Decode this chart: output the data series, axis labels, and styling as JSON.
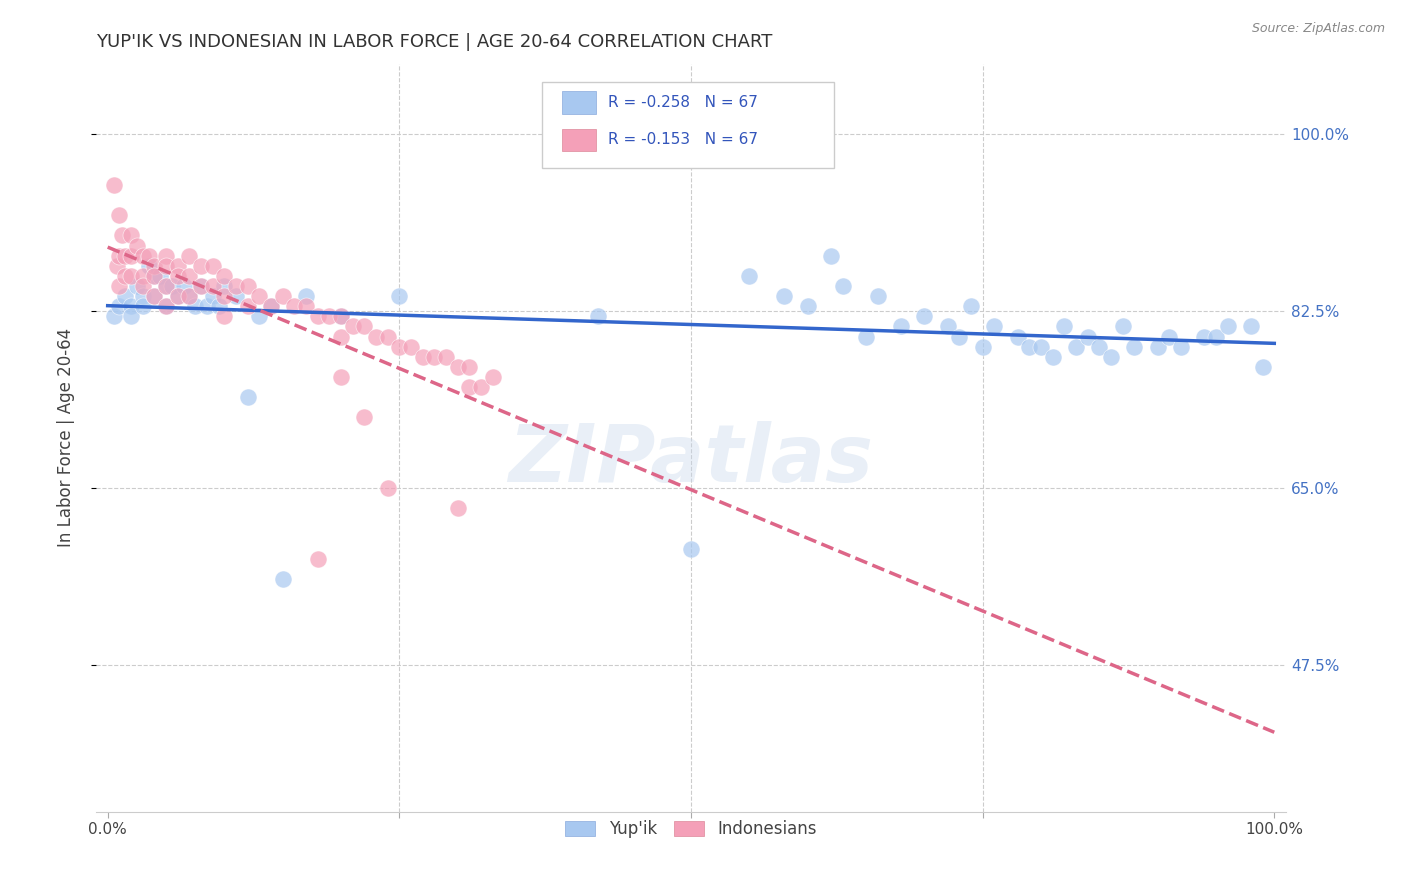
{
  "title": "YUP'IK VS INDONESIAN IN LABOR FORCE | AGE 20-64 CORRELATION CHART",
  "source": "Source: ZipAtlas.com",
  "ylabel": "In Labor Force | Age 20-64",
  "r_yupik": -0.258,
  "n_yupik": 67,
  "r_indonesian": -0.153,
  "n_indonesian": 67,
  "legend_yupik": "Yup'ik",
  "legend_indonesian": "Indonesians",
  "yupik_color": "#A8C8F0",
  "indonesian_color": "#F4A0B8",
  "yupik_line_color": "#3366CC",
  "indonesian_line_color": "#DD6688",
  "background_color": "#FFFFFF",
  "watermark": "ZIPatlas",
  "ytick_vals": [
    0.475,
    0.65,
    0.825,
    1.0
  ],
  "ytick_labels": [
    "47.5%",
    "65.0%",
    "82.5%",
    "100.0%"
  ],
  "yupik_x": [
    0.005,
    0.01,
    0.015,
    0.02,
    0.02,
    0.025,
    0.03,
    0.03,
    0.035,
    0.04,
    0.04,
    0.045,
    0.05,
    0.05,
    0.055,
    0.06,
    0.065,
    0.07,
    0.075,
    0.08,
    0.085,
    0.09,
    0.095,
    0.1,
    0.11,
    0.12,
    0.13,
    0.14,
    0.15,
    0.17,
    0.2,
    0.25,
    0.42,
    0.5,
    0.55,
    0.58,
    0.6,
    0.62,
    0.63,
    0.65,
    0.66,
    0.68,
    0.7,
    0.72,
    0.73,
    0.74,
    0.75,
    0.76,
    0.78,
    0.79,
    0.8,
    0.81,
    0.82,
    0.83,
    0.84,
    0.85,
    0.86,
    0.87,
    0.88,
    0.9,
    0.91,
    0.92,
    0.94,
    0.95,
    0.96,
    0.98,
    0.99
  ],
  "yupik_y": [
    0.82,
    0.83,
    0.84,
    0.83,
    0.82,
    0.85,
    0.84,
    0.83,
    0.87,
    0.86,
    0.84,
    0.86,
    0.85,
    0.83,
    0.85,
    0.84,
    0.85,
    0.84,
    0.83,
    0.85,
    0.83,
    0.84,
    0.83,
    0.85,
    0.84,
    0.74,
    0.82,
    0.83,
    0.56,
    0.84,
    0.82,
    0.84,
    0.82,
    0.59,
    0.86,
    0.84,
    0.83,
    0.88,
    0.85,
    0.8,
    0.84,
    0.81,
    0.82,
    0.81,
    0.8,
    0.83,
    0.79,
    0.81,
    0.8,
    0.79,
    0.79,
    0.78,
    0.81,
    0.79,
    0.8,
    0.79,
    0.78,
    0.81,
    0.79,
    0.79,
    0.8,
    0.79,
    0.8,
    0.8,
    0.81,
    0.81,
    0.77
  ],
  "indonesian_x": [
    0.005,
    0.008,
    0.01,
    0.01,
    0.01,
    0.012,
    0.015,
    0.015,
    0.02,
    0.02,
    0.02,
    0.025,
    0.03,
    0.03,
    0.03,
    0.035,
    0.04,
    0.04,
    0.04,
    0.05,
    0.05,
    0.05,
    0.05,
    0.06,
    0.06,
    0.06,
    0.07,
    0.07,
    0.07,
    0.08,
    0.08,
    0.09,
    0.09,
    0.1,
    0.1,
    0.1,
    0.11,
    0.12,
    0.12,
    0.13,
    0.14,
    0.15,
    0.16,
    0.17,
    0.18,
    0.19,
    0.2,
    0.2,
    0.21,
    0.22,
    0.23,
    0.24,
    0.25,
    0.26,
    0.27,
    0.28,
    0.29,
    0.3,
    0.3,
    0.31,
    0.31,
    0.32,
    0.33,
    0.24,
    0.22,
    0.18,
    0.2
  ],
  "indonesian_y": [
    0.95,
    0.87,
    0.92,
    0.88,
    0.85,
    0.9,
    0.88,
    0.86,
    0.9,
    0.88,
    0.86,
    0.89,
    0.88,
    0.86,
    0.85,
    0.88,
    0.87,
    0.86,
    0.84,
    0.88,
    0.87,
    0.85,
    0.83,
    0.87,
    0.86,
    0.84,
    0.88,
    0.86,
    0.84,
    0.87,
    0.85,
    0.87,
    0.85,
    0.86,
    0.84,
    0.82,
    0.85,
    0.85,
    0.83,
    0.84,
    0.83,
    0.84,
    0.83,
    0.83,
    0.82,
    0.82,
    0.82,
    0.8,
    0.81,
    0.81,
    0.8,
    0.8,
    0.79,
    0.79,
    0.78,
    0.78,
    0.78,
    0.77,
    0.63,
    0.77,
    0.75,
    0.75,
    0.76,
    0.65,
    0.72,
    0.58,
    0.76
  ]
}
